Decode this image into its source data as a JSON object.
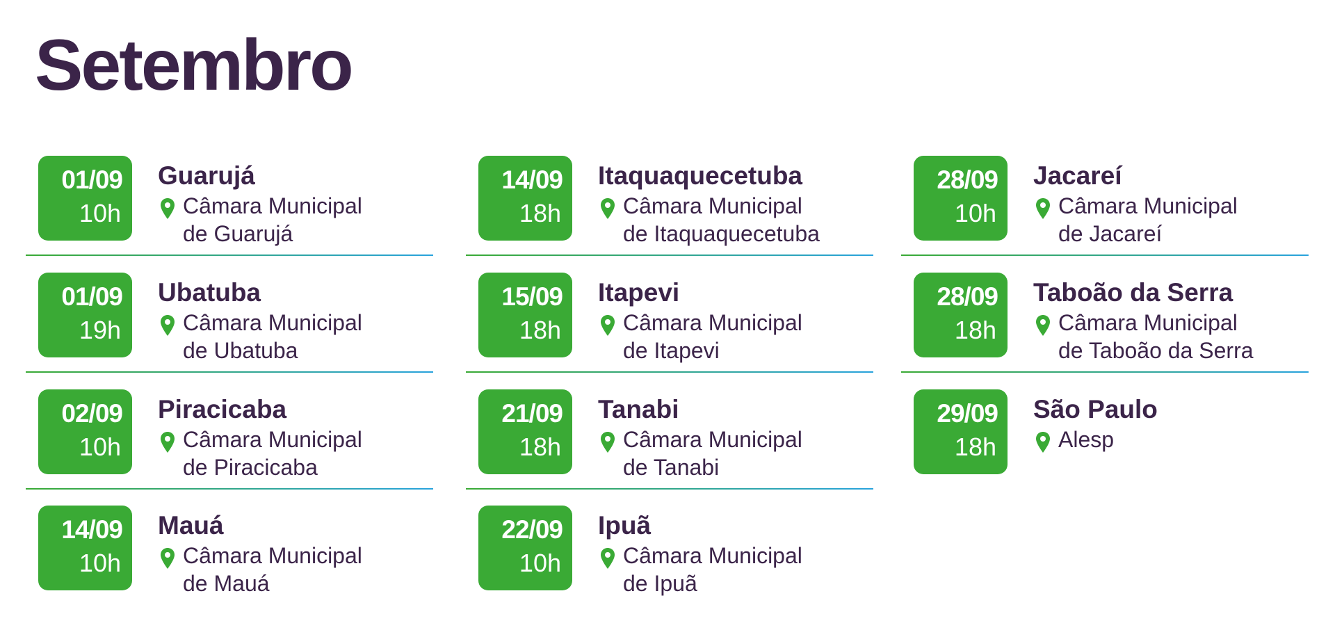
{
  "title": "Setembro",
  "colors": {
    "accent_green": "#3aaa35",
    "text_purple": "#3b2449",
    "divider_blue": "#29a3dd"
  },
  "icons": {
    "location": "map-pin-icon"
  },
  "columns": [
    [
      {
        "date": "01/09",
        "time": "10h",
        "city": "Guarujá",
        "location": "Câmara Municipal\nde Guarujá"
      },
      {
        "date": "01/09",
        "time": "19h",
        "city": "Ubatuba",
        "location": "Câmara Municipal\nde Ubatuba"
      },
      {
        "date": "02/09",
        "time": "10h",
        "city": "Piracicaba",
        "location": "Câmara Municipal\nde Piracicaba"
      },
      {
        "date": "14/09",
        "time": "10h",
        "city": "Mauá",
        "location": "Câmara Municipal\nde Mauá"
      }
    ],
    [
      {
        "date": "14/09",
        "time": "18h",
        "city": "Itaquaquecetuba",
        "location": "Câmara Municipal\nde Itaquaquecetuba"
      },
      {
        "date": "15/09",
        "time": "18h",
        "city": "Itapevi",
        "location": "Câmara Municipal\nde Itapevi"
      },
      {
        "date": "21/09",
        "time": "18h",
        "city": "Tanabi",
        "location": "Câmara Municipal\nde Tanabi"
      },
      {
        "date": "22/09",
        "time": "10h",
        "city": "Ipuã",
        "location": "Câmara Municipal\nde Ipuã"
      }
    ],
    [
      {
        "date": "28/09",
        "time": "10h",
        "city": "Jacareí",
        "location": "Câmara Municipal\nde Jacareí"
      },
      {
        "date": "28/09",
        "time": "18h",
        "city": "Taboão da Serra",
        "location": "Câmara Municipal\nde Taboão da Serra"
      },
      {
        "date": "29/09",
        "time": "18h",
        "city": "São Paulo",
        "location": "Alesp"
      }
    ]
  ]
}
